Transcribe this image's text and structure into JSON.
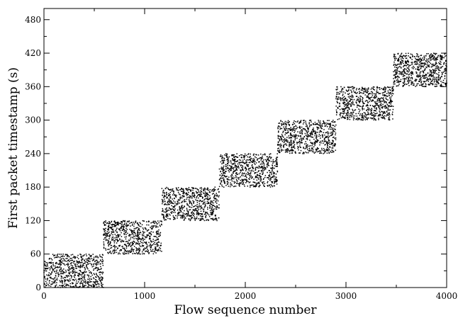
{
  "chart_data": {
    "type": "scatter",
    "title": "",
    "xlabel": "Flow sequence number",
    "ylabel": "First packet timestamp (s)",
    "xlim": [
      0,
      4000
    ],
    "ylim": [
      0,
      500
    ],
    "xticks": [
      0,
      1000,
      2000,
      3000,
      4000
    ],
    "yticks": [
      0,
      60,
      120,
      180,
      240,
      300,
      360,
      420,
      480
    ],
    "grid": false,
    "legend": "none",
    "point_color": "#000000",
    "clusters": [
      {
        "x_range": [
          0,
          590
        ],
        "y_range": [
          0,
          60
        ]
      },
      {
        "x_range": [
          590,
          1170
        ],
        "y_range": [
          60,
          120
        ]
      },
      {
        "x_range": [
          1170,
          1740
        ],
        "y_range": [
          120,
          180
        ]
      },
      {
        "x_range": [
          1740,
          2320
        ],
        "y_range": [
          180,
          240
        ]
      },
      {
        "x_range": [
          2320,
          2900
        ],
        "y_range": [
          240,
          300
        ]
      },
      {
        "x_range": [
          2900,
          3470
        ],
        "y_range": [
          300,
          360
        ]
      },
      {
        "x_range": [
          3470,
          4000
        ],
        "y_range": [
          360,
          420
        ]
      }
    ],
    "points_per_cluster": 700
  }
}
